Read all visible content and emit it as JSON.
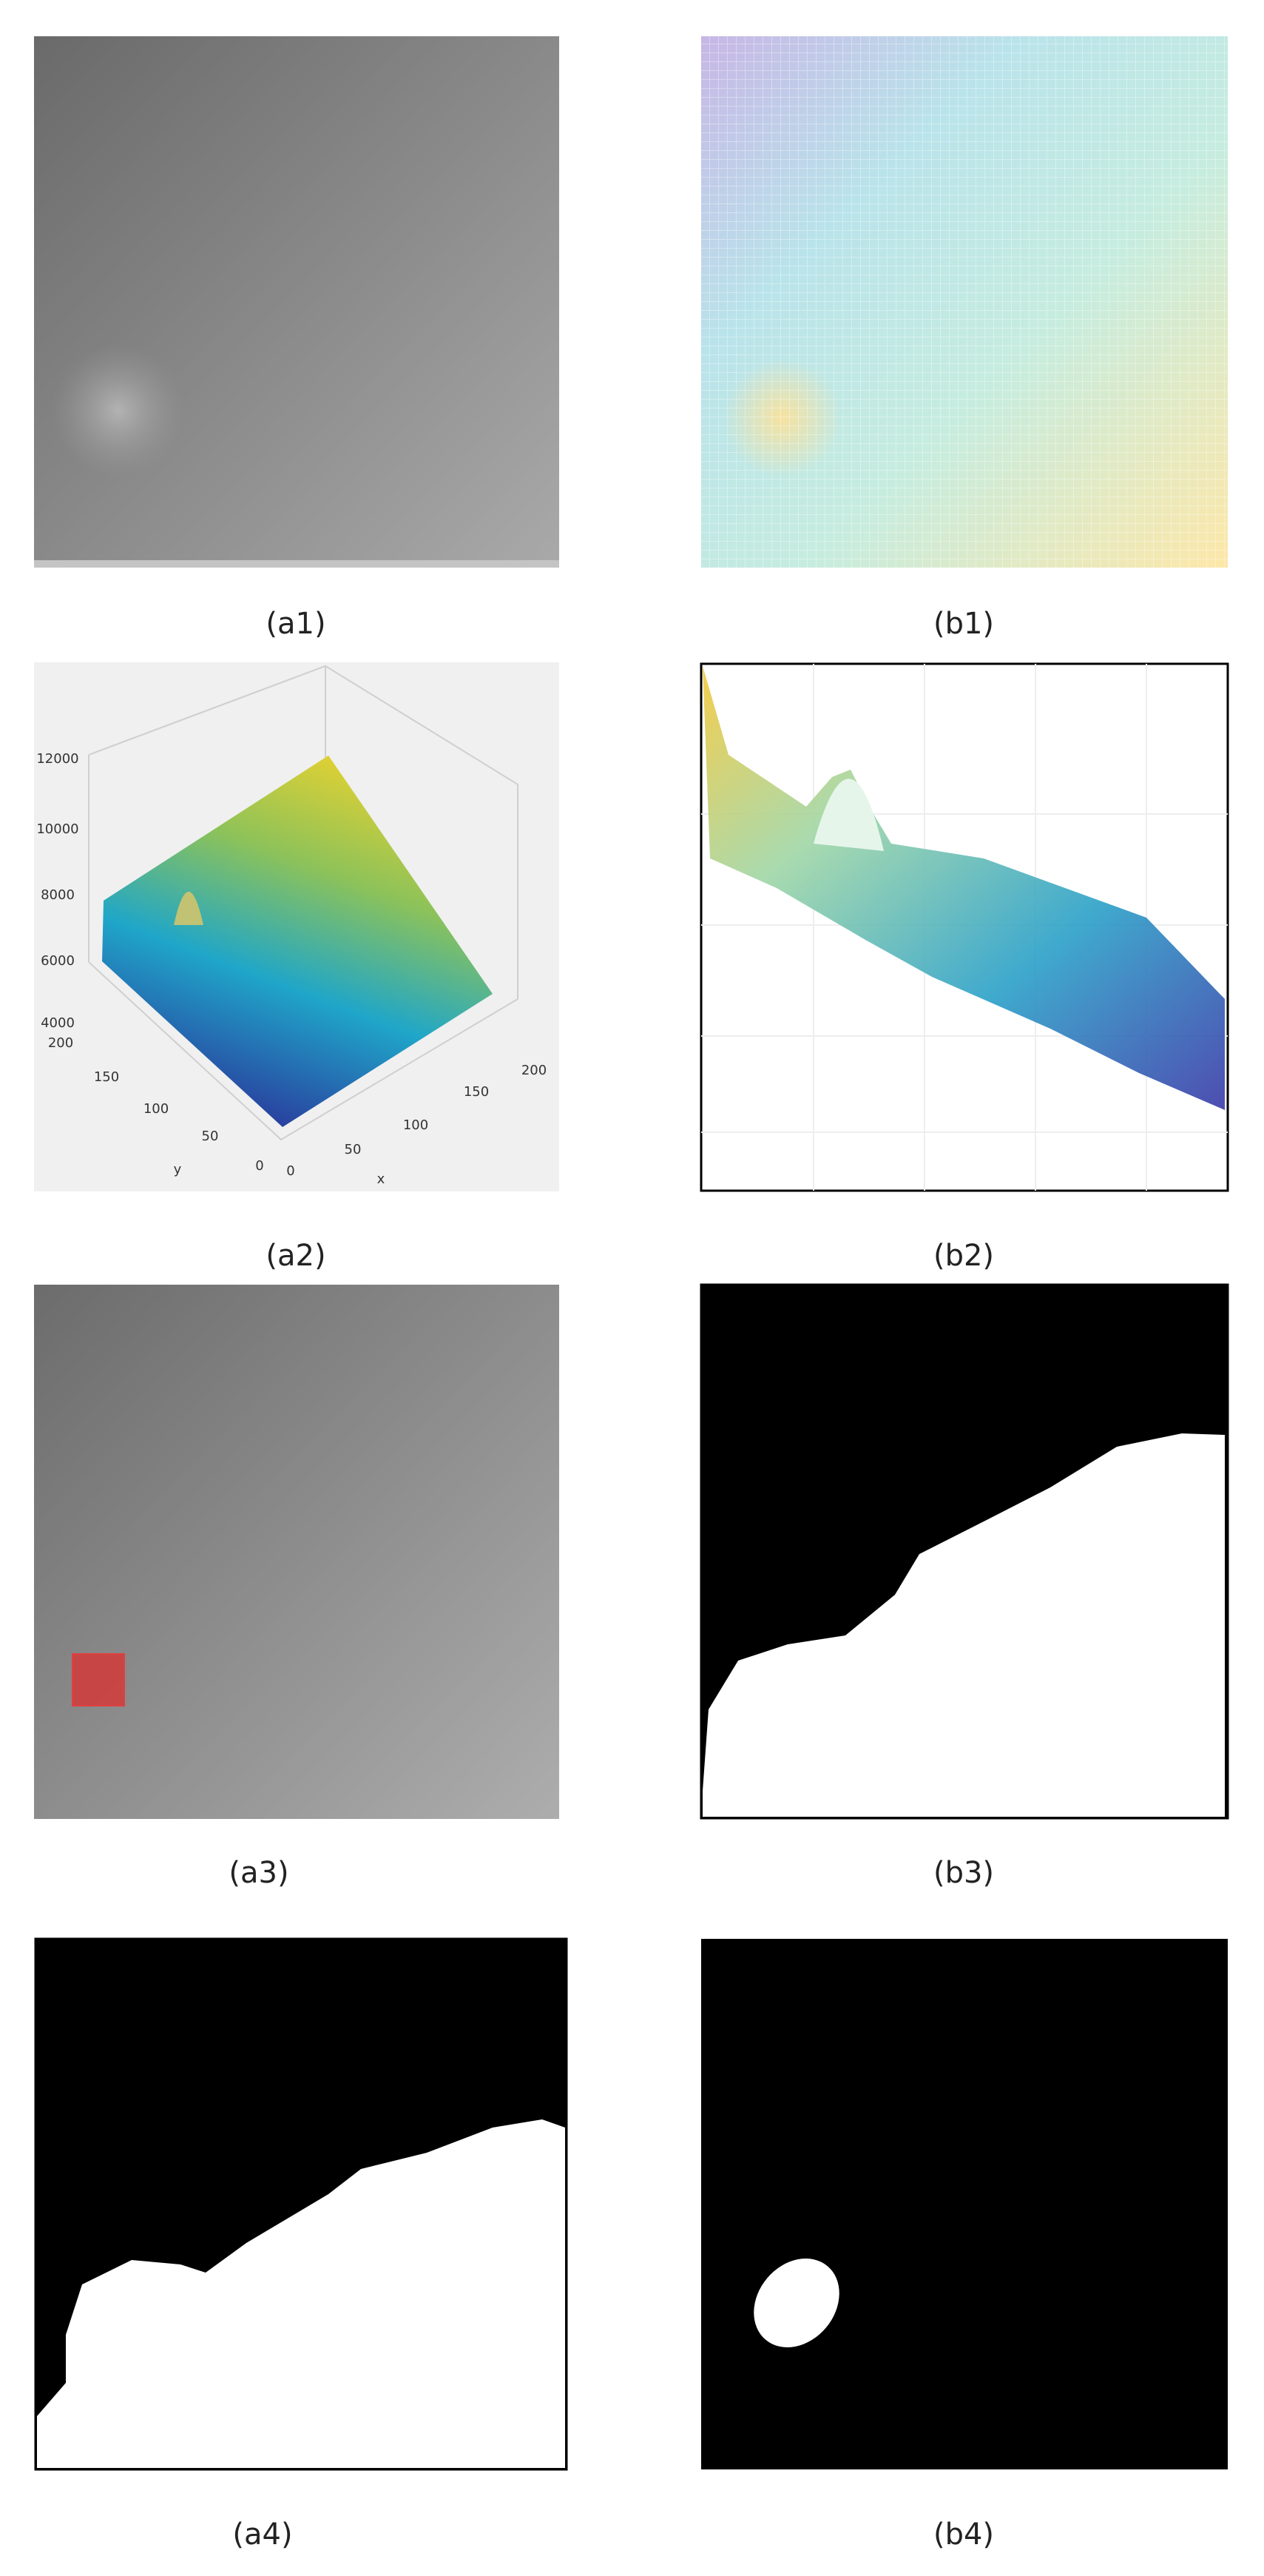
{
  "figure": {
    "panels": {
      "a1": {
        "label": "(a1)"
      },
      "b1": {
        "label": "(b1)"
      },
      "a2": {
        "label": "(a2)",
        "z_ticks": [
          "12000",
          "10000",
          "8000",
          "6000",
          "4000"
        ],
        "y_ticks": [
          "200",
          "150",
          "100",
          "50",
          "0"
        ],
        "x_ticks": [
          "0",
          "50",
          "100",
          "150",
          "200"
        ],
        "y_axis": "y",
        "x_axis": "x"
      },
      "b2": {
        "label": "(b2)"
      },
      "a3": {
        "label": "(a3)"
      },
      "b3": {
        "label": "(b3)"
      },
      "a4": {
        "label": "(a4)"
      },
      "b4": {
        "label": "(b4)"
      }
    }
  }
}
